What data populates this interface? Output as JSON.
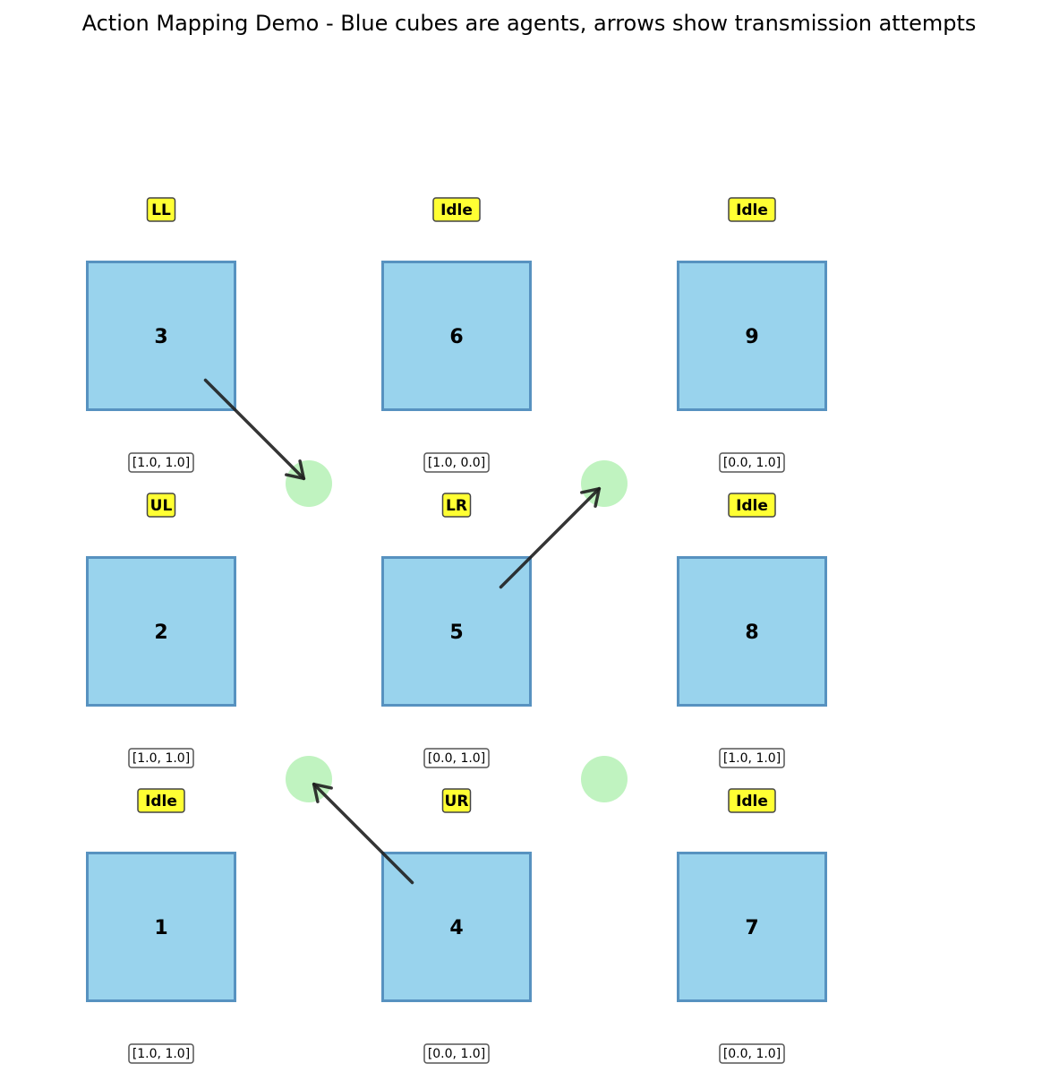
{
  "title": "Action Mapping Demo - Blue cubes are agents, arrows show transmission attempts",
  "colors": {
    "cube_fill": "#94D1EC",
    "cube_edge": "#5792C0",
    "relay_fill": "#9EEC9E",
    "action_fill": "#FFFF33",
    "arrow": "#1F1F1F"
  },
  "agents": [
    {
      "id": "1",
      "col": 0,
      "row": 0,
      "action": "Idle",
      "state": "[1.0, 1.0]"
    },
    {
      "id": "2",
      "col": 0,
      "row": 1,
      "action": "UL",
      "state": "[1.0, 1.0]"
    },
    {
      "id": "3",
      "col": 0,
      "row": 2,
      "action": "LL",
      "state": "[1.0, 1.0]"
    },
    {
      "id": "4",
      "col": 1,
      "row": 0,
      "action": "UR",
      "state": "[0.0, 1.0]"
    },
    {
      "id": "5",
      "col": 1,
      "row": 1,
      "action": "LR",
      "state": "[0.0, 1.0]"
    },
    {
      "id": "6",
      "col": 1,
      "row": 2,
      "action": "Idle",
      "state": "[1.0, 0.0]"
    },
    {
      "id": "7",
      "col": 2,
      "row": 0,
      "action": "Idle",
      "state": "[0.0, 1.0]"
    },
    {
      "id": "8",
      "col": 2,
      "row": 1,
      "action": "Idle",
      "state": "[1.0, 1.0]"
    },
    {
      "id": "9",
      "col": 2,
      "row": 2,
      "action": "Idle",
      "state": "[0.0, 1.0]"
    }
  ],
  "relays": [
    {
      "col": 0.5,
      "row": 1.5
    },
    {
      "col": 1.5,
      "row": 1.5
    },
    {
      "col": 0.5,
      "row": 0.5
    },
    {
      "col": 1.5,
      "row": 0.5
    }
  ],
  "transmissions": [
    {
      "from_agent": "3",
      "to_relay": [
        0.5,
        1.5
      ]
    },
    {
      "from_agent": "5",
      "to_relay": [
        1.5,
        1.5
      ]
    },
    {
      "from_agent": "4",
      "to_relay": [
        0.5,
        0.5
      ]
    }
  ]
}
